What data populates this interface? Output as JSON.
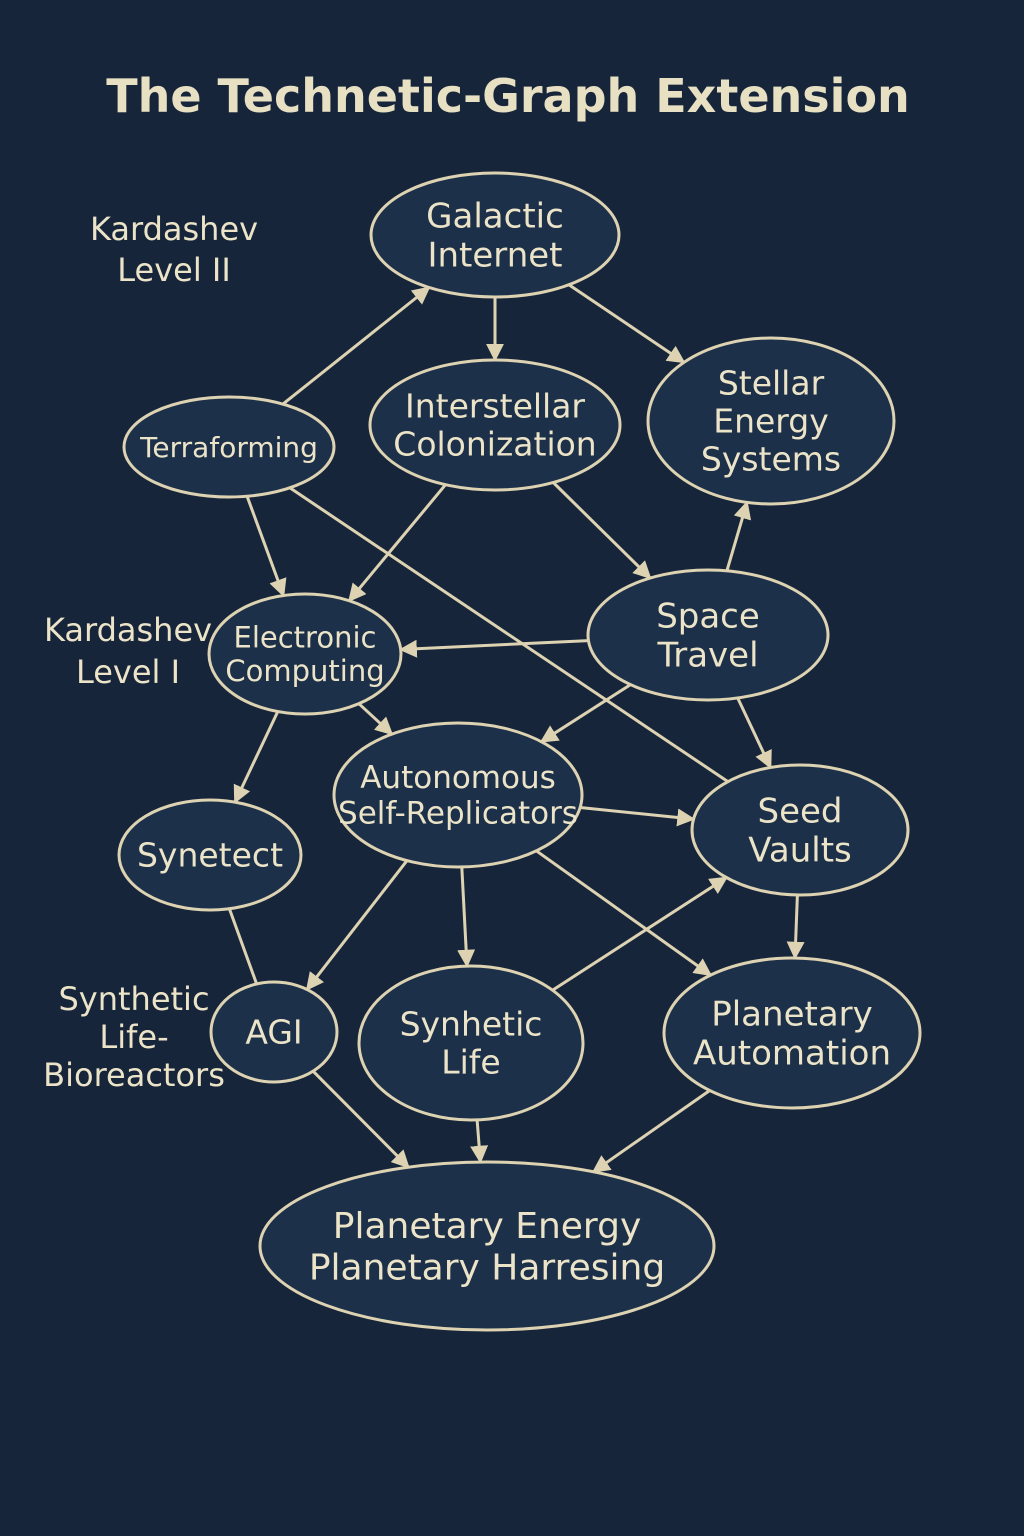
{
  "title": "The Technetic-Graph Extension",
  "colors": {
    "background": "#16253a",
    "node_fill": "#1c3049",
    "stroke": "#ddd3b2",
    "text": "#ece4c8"
  },
  "level_labels": [
    {
      "id": "kardashev-level-2",
      "lines": [
        "Kardashev",
        "Level II"
      ]
    },
    {
      "id": "kardashev-level-1",
      "lines": [
        "Kardashev",
        "Level I"
      ]
    },
    {
      "id": "synthetic-life-bioreactors",
      "lines": [
        "Synthetic",
        "Life-",
        "Bioreactors"
      ]
    }
  ],
  "nodes": [
    {
      "id": "galactic-internet",
      "lines": [
        "Galactic",
        "Internet"
      ]
    },
    {
      "id": "terraforming",
      "lines": [
        "Terraforming"
      ]
    },
    {
      "id": "interstellar-colonization",
      "lines": [
        "Interstellar",
        "Colonization"
      ]
    },
    {
      "id": "stellar-energy-systems",
      "lines": [
        "Stellar",
        "Energy",
        "Systems"
      ]
    },
    {
      "id": "electronic-computing",
      "lines": [
        "Electronic",
        "Computing"
      ]
    },
    {
      "id": "space-travel",
      "lines": [
        "Space",
        "Travel"
      ]
    },
    {
      "id": "autonomous-self-replicators",
      "lines": [
        "Autonomous",
        "Self-Replicators"
      ]
    },
    {
      "id": "seed-vaults",
      "lines": [
        "Seed",
        "Vaults"
      ]
    },
    {
      "id": "synetect",
      "lines": [
        "Synetect"
      ]
    },
    {
      "id": "agi",
      "lines": [
        "AGI"
      ]
    },
    {
      "id": "synhetic-life",
      "lines": [
        "Synhetic",
        "Life"
      ]
    },
    {
      "id": "planetary-automation",
      "lines": [
        "Planetary",
        "Automation"
      ]
    },
    {
      "id": "planetary-energy-harresing",
      "lines": [
        "Planetary Energy",
        "Planetary Harresing"
      ]
    }
  ],
  "edges": [
    {
      "from": "terraforming",
      "to": "galactic-internet",
      "arrow": true
    },
    {
      "from": "galactic-internet",
      "to": "interstellar-colonization",
      "arrow": true
    },
    {
      "from": "galactic-internet",
      "to": "stellar-energy-systems",
      "arrow": true
    },
    {
      "from": "terraforming",
      "to": "electronic-computing",
      "arrow": true
    },
    {
      "from": "terraforming",
      "to": "seed-vaults",
      "arrow": false
    },
    {
      "from": "interstellar-colonization",
      "to": "electronic-computing",
      "arrow": true
    },
    {
      "from": "interstellar-colonization",
      "to": "space-travel",
      "arrow": true
    },
    {
      "from": "space-travel",
      "to": "stellar-energy-systems",
      "arrow": true
    },
    {
      "from": "space-travel",
      "to": "electronic-computing",
      "arrow": true
    },
    {
      "from": "space-travel",
      "to": "autonomous-self-replicators",
      "arrow": true
    },
    {
      "from": "space-travel",
      "to": "seed-vaults",
      "arrow": true
    },
    {
      "from": "electronic-computing",
      "to": "autonomous-self-replicators",
      "arrow": true
    },
    {
      "from": "electronic-computing",
      "to": "synetect",
      "arrow": true
    },
    {
      "from": "autonomous-self-replicators",
      "to": "seed-vaults",
      "arrow": true
    },
    {
      "from": "autonomous-self-replicators",
      "to": "agi",
      "arrow": true
    },
    {
      "from": "autonomous-self-replicators",
      "to": "synhetic-life",
      "arrow": true
    },
    {
      "from": "autonomous-self-replicators",
      "to": "planetary-automation",
      "arrow": true
    },
    {
      "from": "synetect",
      "to": "agi",
      "arrow": false
    },
    {
      "from": "synhetic-life",
      "to": "seed-vaults",
      "arrow": true
    },
    {
      "from": "seed-vaults",
      "to": "planetary-automation",
      "arrow": true
    },
    {
      "from": "agi",
      "to": "planetary-energy-harresing",
      "arrow": true
    },
    {
      "from": "synhetic-life",
      "to": "planetary-energy-harresing",
      "arrow": true
    },
    {
      "from": "planetary-automation",
      "to": "planetary-energy-harresing",
      "arrow": true
    }
  ]
}
